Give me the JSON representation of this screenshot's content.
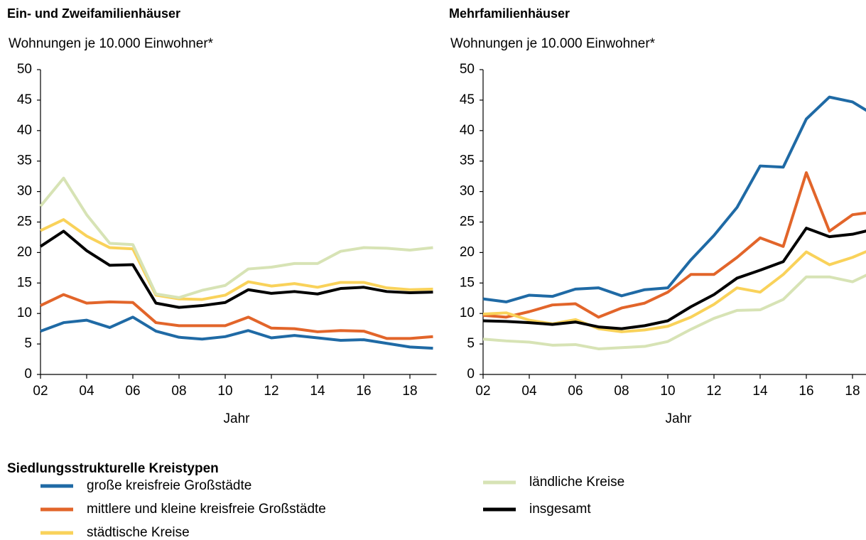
{
  "legend_title": "Siedlungsstrukturelle Kreistypen",
  "chart_data": [
    {
      "type": "line",
      "title": "Ein- und Zweifamilienhäuser",
      "subtitle": "Wohnungen je 10.000 Einwohner*",
      "xlabel": "Jahr",
      "x": [
        2,
        3,
        4,
        5,
        6,
        7,
        8,
        9,
        10,
        11,
        12,
        13,
        14,
        15,
        16,
        17,
        18,
        19
      ],
      "xlim": [
        2,
        19
      ],
      "xticks": [
        {
          "value": 2,
          "label": "02"
        },
        {
          "value": 4,
          "label": "04"
        },
        {
          "value": 6,
          "label": "06"
        },
        {
          "value": 8,
          "label": "08"
        },
        10,
        12,
        14,
        16,
        18
      ],
      "ylim": [
        0,
        50
      ],
      "yticks": [
        0,
        5,
        10,
        15,
        20,
        25,
        30,
        35,
        40,
        45,
        50
      ],
      "series": [
        {
          "name": "große kreisfreie Großstädte",
          "color": "#1f6aa5",
          "values": [
            7.1,
            8.5,
            8.9,
            7.7,
            9.4,
            7.1,
            6.1,
            5.8,
            6.2,
            7.2,
            6.0,
            6.4,
            6.0,
            5.6,
            5.7,
            5.1,
            4.5,
            4.3
          ]
        },
        {
          "name": "mittlere und kleine kreisfreie Großstädte",
          "color": "#e2652a",
          "values": [
            11.3,
            13.1,
            11.7,
            11.9,
            11.8,
            8.5,
            8.0,
            8.0,
            8.0,
            9.4,
            7.6,
            7.5,
            7.0,
            7.2,
            7.1,
            5.9,
            5.9,
            6.2
          ]
        },
        {
          "name": "städtische Kreise",
          "color": "#f9d25a",
          "values": [
            23.6,
            25.4,
            22.7,
            20.8,
            20.6,
            13.0,
            12.4,
            12.3,
            13.0,
            15.2,
            14.5,
            14.9,
            14.3,
            15.1,
            15.1,
            14.2,
            13.9,
            14.0
          ]
        },
        {
          "name": "ländliche Kreise",
          "color": "#d7e3b5",
          "values": [
            27.6,
            32.2,
            26.2,
            21.5,
            21.3,
            13.2,
            12.6,
            13.8,
            14.6,
            17.3,
            17.6,
            18.2,
            18.2,
            20.2,
            20.8,
            20.7,
            20.4,
            20.8
          ]
        },
        {
          "name": "insgesamt",
          "color": "#000000",
          "values": [
            21.0,
            23.5,
            20.3,
            17.9,
            18.0,
            11.7,
            11.0,
            11.3,
            11.8,
            13.9,
            13.3,
            13.6,
            13.2,
            14.1,
            14.3,
            13.6,
            13.4,
            13.5
          ]
        }
      ]
    },
    {
      "type": "line",
      "title": "Mehrfamilienhäuser",
      "subtitle": "Wohnungen je 10.000 Einwohner*",
      "xlabel": "Jahr",
      "x": [
        2,
        3,
        4,
        5,
        6,
        7,
        8,
        9,
        10,
        11,
        12,
        13,
        14,
        15,
        16,
        17,
        18,
        19
      ],
      "xlim": [
        2,
        19
      ],
      "xticks": [
        {
          "value": 2,
          "label": "02"
        },
        {
          "value": 4,
          "label": "04"
        },
        {
          "value": 6,
          "label": "06"
        },
        {
          "value": 8,
          "label": "08"
        },
        10,
        12,
        14,
        16,
        18
      ],
      "ylim": [
        0,
        50
      ],
      "yticks": [
        0,
        5,
        10,
        15,
        20,
        25,
        30,
        35,
        40,
        45,
        50
      ],
      "series": [
        {
          "name": "große kreisfreie Großstädte",
          "color": "#1f6aa5",
          "values": [
            12.4,
            11.9,
            13.0,
            12.8,
            14.0,
            14.2,
            12.9,
            13.9,
            14.2,
            18.8,
            22.8,
            27.4,
            34.2,
            34.0,
            41.9,
            45.5,
            44.7,
            42.4
          ]
        },
        {
          "name": "mittlere und kleine kreisfreie Großstädte",
          "color": "#e2652a",
          "values": [
            9.7,
            9.4,
            10.3,
            11.4,
            11.6,
            9.4,
            10.9,
            11.7,
            13.5,
            16.4,
            16.4,
            19.2,
            22.4,
            21.0,
            33.1,
            23.5,
            26.2,
            26.7
          ]
        },
        {
          "name": "städtische Kreise",
          "color": "#f9d25a",
          "values": [
            9.9,
            10.1,
            8.9,
            8.3,
            9.0,
            7.5,
            7.0,
            7.3,
            7.9,
            9.4,
            11.5,
            14.2,
            13.5,
            16.4,
            20.1,
            18.0,
            19.2,
            20.8
          ]
        },
        {
          "name": "ländliche Kreise",
          "color": "#d7e3b5",
          "values": [
            5.8,
            5.5,
            5.3,
            4.8,
            4.9,
            4.2,
            4.4,
            4.6,
            5.4,
            7.4,
            9.2,
            10.5,
            10.6,
            12.3,
            16.0,
            16.0,
            15.2,
            17.0
          ]
        },
        {
          "name": "insgesamt",
          "color": "#000000",
          "values": [
            8.8,
            8.7,
            8.5,
            8.2,
            8.6,
            7.8,
            7.5,
            8.0,
            8.8,
            11.1,
            13.1,
            15.8,
            17.1,
            18.5,
            24.0,
            22.6,
            23.0,
            23.9
          ]
        }
      ]
    }
  ]
}
